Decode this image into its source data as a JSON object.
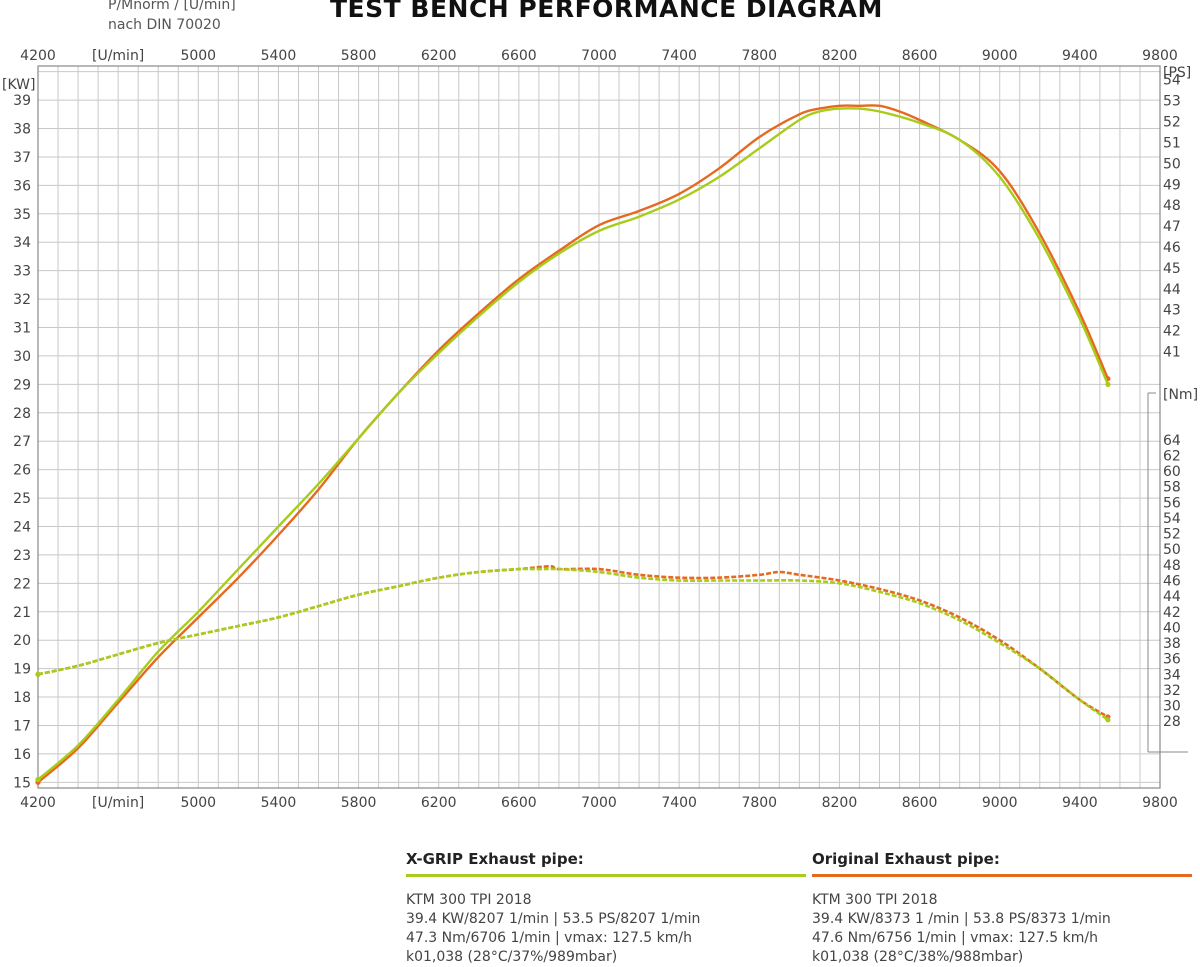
{
  "header": {
    "left_line1": "P/Mnorm / [U/min]",
    "left_line2": "nach DIN 70020",
    "title": "TEST BENCH PERFORMANCE DIAGRAM"
  },
  "colors": {
    "xgrip": "#a8cc1c",
    "original": "#e5691f",
    "grid": "#c8c8c8",
    "frame": "#888888"
  },
  "legend": [
    {
      "name": "X-GRIP Exhaust pipe:",
      "lines": [
        "KTM 300 TPI 2018",
        "39.4 KW/8207 1/min | 53.5 PS/8207 1/min",
        "47.3 Nm/6706 1/min | vmax: 127.5 km/h",
        "k01,038 (28°C/37%/989mbar)"
      ]
    },
    {
      "name": "Original Exhaust pipe:",
      "lines": [
        "KTM 300 TPI 2018",
        "39.4 KW/8373 1 /min | 53.8 PS/8373 1/min",
        "47.6 Nm/6756 1/min | vmax: 127.5 km/h",
        "k01,038 (28°C/38%/988mbar)"
      ]
    }
  ],
  "chart_data": {
    "type": "line",
    "title": "TEST BENCH PERFORMANCE DIAGRAM",
    "x_axis": {
      "unit_label": "[U/min]",
      "ticks": [
        4200,
        5000,
        5400,
        5800,
        6200,
        6600,
        7000,
        7400,
        7800,
        8200,
        8600,
        9000,
        9400,
        9800
      ],
      "range": [
        4200,
        9800
      ]
    },
    "y_axis_left": {
      "unit_label": "[KW]",
      "ticks": [
        15,
        16,
        17,
        18,
        19,
        20,
        21,
        22,
        23,
        24,
        25,
        26,
        27,
        28,
        29,
        30,
        31,
        32,
        33,
        34,
        35,
        36,
        37,
        38,
        39
      ],
      "range": [
        14.8,
        40.2
      ]
    },
    "y_axis_right_ps": {
      "unit_label": "[PS]",
      "ticks": [
        41,
        42,
        43,
        44,
        45,
        46,
        47,
        48,
        49,
        50,
        51,
        52,
        53,
        54
      ]
    },
    "y_axis_right_nm": {
      "unit_label": "[Nm]",
      "ticks": [
        28,
        30,
        32,
        34,
        36,
        38,
        40,
        42,
        44,
        46,
        48,
        50,
        52,
        54,
        56,
        58,
        60,
        62,
        64
      ]
    },
    "grid": true,
    "series": [
      {
        "name": "X-GRIP Exhaust pipe:",
        "kind": "power",
        "x": [
          4200,
          4400,
          4600,
          4800,
          5000,
          5200,
          5400,
          5600,
          5800,
          6000,
          6200,
          6400,
          6600,
          6800,
          7000,
          7200,
          7400,
          7600,
          7800,
          8000,
          8100,
          8200,
          8300,
          8400,
          8600,
          8800,
          9000,
          9200,
          9400,
          9540
        ],
        "y": [
          15.1,
          16.3,
          17.9,
          19.6,
          21.0,
          22.5,
          24.0,
          25.5,
          27.1,
          28.7,
          30.1,
          31.4,
          32.6,
          33.6,
          34.4,
          34.9,
          35.5,
          36.3,
          37.3,
          38.3,
          38.6,
          38.7,
          38.7,
          38.6,
          38.2,
          37.6,
          36.3,
          34.1,
          31.3,
          29.0
        ]
      },
      {
        "name": "Original Exhaust pipe:",
        "kind": "power",
        "x": [
          4200,
          4400,
          4600,
          4800,
          5000,
          5200,
          5400,
          5600,
          5800,
          6000,
          6200,
          6400,
          6600,
          6800,
          7000,
          7200,
          7400,
          7600,
          7800,
          8000,
          8100,
          8200,
          8300,
          8400,
          8500,
          8600,
          8800,
          9000,
          9200,
          9400,
          9540
        ],
        "y": [
          15.0,
          16.2,
          17.8,
          19.4,
          20.8,
          22.2,
          23.7,
          25.3,
          27.1,
          28.7,
          30.2,
          31.5,
          32.7,
          33.7,
          34.6,
          35.1,
          35.7,
          36.6,
          37.7,
          38.5,
          38.7,
          38.8,
          38.8,
          38.8,
          38.6,
          38.3,
          37.6,
          36.5,
          34.3,
          31.5,
          29.2
        ]
      },
      {
        "name": "X-GRIP Exhaust pipe:",
        "kind": "torque",
        "x": [
          4200,
          4400,
          4600,
          4800,
          5000,
          5200,
          5400,
          5600,
          5800,
          6000,
          6200,
          6400,
          6600,
          6706,
          6800,
          7000,
          7200,
          7400,
          7600,
          7800,
          8000,
          8200,
          8400,
          8600,
          8800,
          9000,
          9200,
          9400,
          9540
        ],
        "y_kw_scale": [
          18.8,
          19.1,
          19.5,
          19.9,
          20.2,
          20.5,
          20.8,
          21.2,
          21.6,
          21.9,
          22.2,
          22.4,
          22.5,
          22.5,
          22.5,
          22.4,
          22.2,
          22.1,
          22.1,
          22.1,
          22.1,
          22.0,
          21.7,
          21.3,
          20.7,
          19.9,
          19.0,
          17.9,
          17.2
        ]
      },
      {
        "name": "Original Exhaust pipe:",
        "kind": "torque",
        "x": [
          4200,
          4400,
          4600,
          4800,
          5000,
          5200,
          5400,
          5600,
          5800,
          6000,
          6200,
          6400,
          6600,
          6756,
          6800,
          7000,
          7200,
          7400,
          7600,
          7800,
          7900,
          8000,
          8200,
          8400,
          8600,
          8800,
          9000,
          9200,
          9400,
          9540
        ],
        "y_kw_scale": [
          18.8,
          19.1,
          19.5,
          19.9,
          20.2,
          20.5,
          20.8,
          21.2,
          21.6,
          21.9,
          22.2,
          22.4,
          22.5,
          22.6,
          22.5,
          22.5,
          22.3,
          22.2,
          22.2,
          22.3,
          22.4,
          22.3,
          22.1,
          21.8,
          21.4,
          20.8,
          20.0,
          19.0,
          17.9,
          17.3
        ]
      }
    ]
  }
}
